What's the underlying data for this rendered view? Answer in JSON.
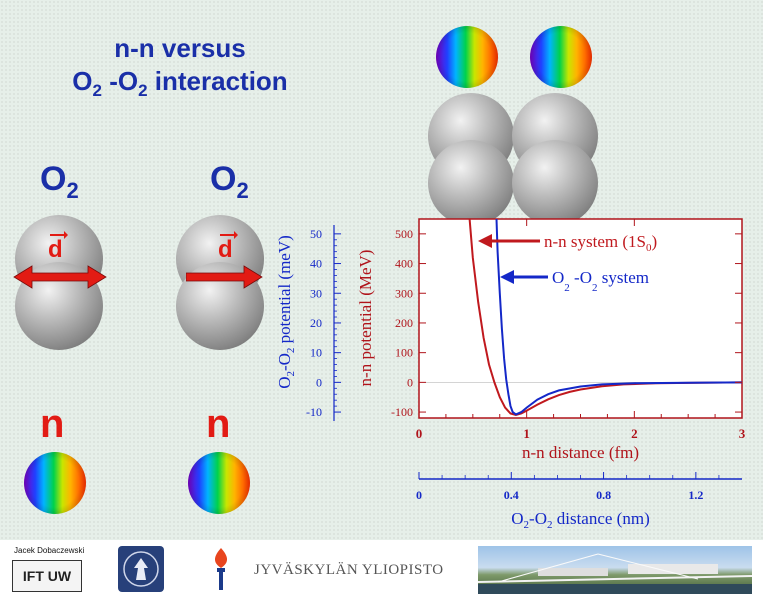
{
  "title": {
    "line1": "n-n versus",
    "line2_base": "O",
    "line2_sub": "2",
    "line2_mid": " -O",
    "line2_sub2": "2",
    "line2_end": " interaction"
  },
  "molecules": [
    {
      "label_base": "O",
      "label_sub": "2",
      "vector_label": "d",
      "arrow_direction": "both"
    },
    {
      "label_base": "O",
      "label_sub": "2",
      "vector_label": "d",
      "arrow_direction": "right"
    }
  ],
  "neutrons": [
    {
      "label": "n"
    },
    {
      "label": "n"
    }
  ],
  "chart_data": {
    "type": "line",
    "title": "",
    "xlabel": "n-n distance (fm)",
    "xlabel2": "O2-O2 distance (nm)",
    "ylabel_right": "n-n potential (MeV)",
    "ylabel_left": "O2-O2 potential (meV)",
    "xlim": [
      0,
      3
    ],
    "ylim": [
      -120,
      550
    ],
    "x_ticks": [
      0,
      1,
      2,
      3
    ],
    "y_ticks": [
      -100,
      0,
      100,
      200,
      300,
      400,
      500
    ],
    "x2_ticks": [
      "0",
      "0.4",
      "0.8",
      "1.2"
    ],
    "x2_tick_values": [
      0,
      0.4,
      0.8,
      1.2
    ],
    "x2_range": [
      0,
      1.4
    ],
    "y2_ticks": [
      "-10",
      "0",
      "10",
      "20",
      "30",
      "40",
      "50"
    ],
    "y2_tick_values": [
      -10,
      0,
      10,
      20,
      30,
      40,
      50
    ],
    "series": [
      {
        "name": "n-n system (1S0)",
        "name_text": "n-n system (1S",
        "name_sub": "0",
        "name_end": ")",
        "color": "#c0191e",
        "points": [
          [
            0.47,
            550
          ],
          [
            0.5,
            420
          ],
          [
            0.55,
            270
          ],
          [
            0.6,
            150
          ],
          [
            0.65,
            60
          ],
          [
            0.7,
            0
          ],
          [
            0.75,
            -50
          ],
          [
            0.8,
            -85
          ],
          [
            0.85,
            -105
          ],
          [
            0.9,
            -110
          ],
          [
            0.95,
            -105
          ],
          [
            1.0,
            -95
          ],
          [
            1.1,
            -75
          ],
          [
            1.2,
            -57
          ],
          [
            1.3,
            -43
          ],
          [
            1.4,
            -32
          ],
          [
            1.5,
            -24
          ],
          [
            1.7,
            -13
          ],
          [
            1.9,
            -7
          ],
          [
            2.2,
            -3
          ],
          [
            2.6,
            -1
          ],
          [
            3.0,
            0
          ]
        ]
      },
      {
        "name": "O2 -O2 system",
        "name_text": "O",
        "color": "#1428c8",
        "points": [
          [
            0.72,
            550
          ],
          [
            0.73,
            440
          ],
          [
            0.75,
            300
          ],
          [
            0.77,
            180
          ],
          [
            0.79,
            80
          ],
          [
            0.81,
            10
          ],
          [
            0.83,
            -40
          ],
          [
            0.85,
            -80
          ],
          [
            0.87,
            -100
          ],
          [
            0.9,
            -108
          ],
          [
            0.95,
            -100
          ],
          [
            1.0,
            -85
          ],
          [
            1.1,
            -58
          ],
          [
            1.2,
            -40
          ],
          [
            1.3,
            -27
          ],
          [
            1.5,
            -14
          ],
          [
            1.7,
            -7
          ],
          [
            2.0,
            -3
          ],
          [
            2.5,
            -1
          ],
          [
            3.0,
            0
          ]
        ]
      }
    ],
    "legend_position": "top-right",
    "colors": {
      "frame": "#b0141b",
      "secondary_axis": "#1428c8"
    }
  },
  "footer": {
    "credit": "Jacek Dobaczewski",
    "ift_logo": "IFT UW",
    "university_name": "JYVÄSKYLÄN YLIOPISTO"
  }
}
